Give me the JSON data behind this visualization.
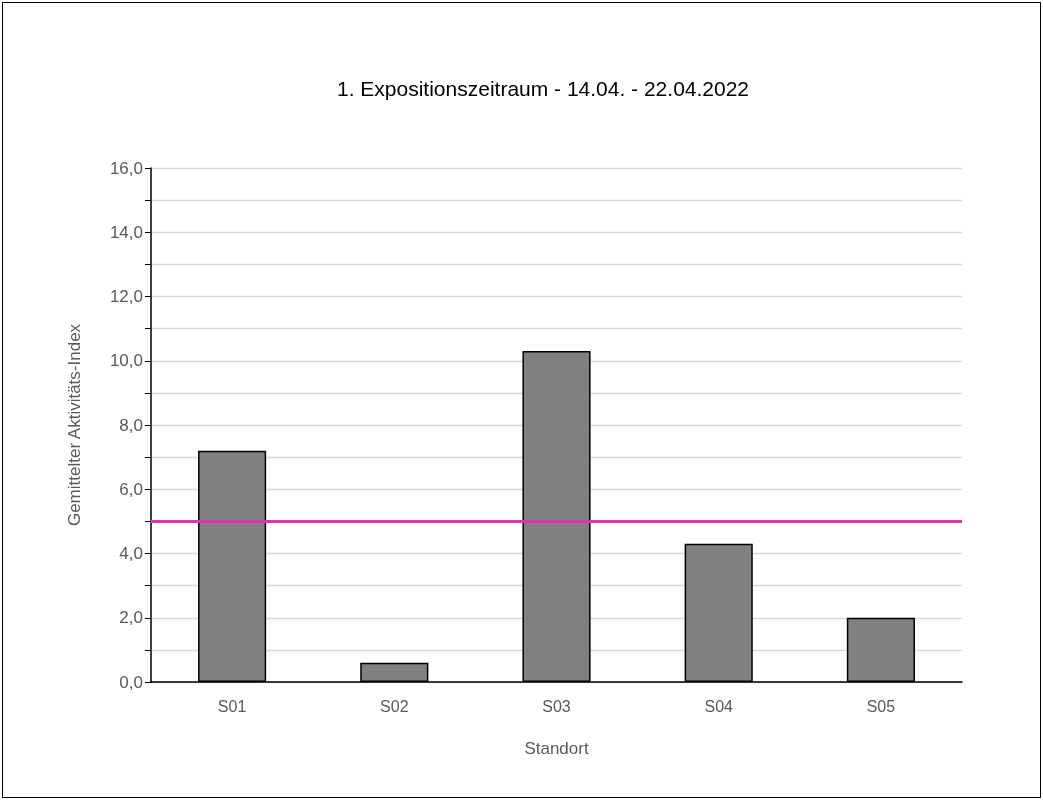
{
  "chart_data": {
    "type": "bar",
    "title": "1. Expositionszeitraum - 14.04. - 22.04.2022",
    "xlabel": "Standort",
    "ylabel": "Gemittelter Aktivitäts-Index",
    "categories": [
      "S01",
      "S02",
      "S03",
      "S04",
      "S05"
    ],
    "values": [
      7.2,
      0.6,
      10.3,
      4.3,
      2.0
    ],
    "color": "#808080",
    "ylim": [
      0,
      16
    ],
    "yticks": [
      {
        "value": 0,
        "label": "0,0"
      },
      {
        "value": 1,
        "label": null
      },
      {
        "value": 2,
        "label": "2,0"
      },
      {
        "value": 3,
        "label": null
      },
      {
        "value": 4,
        "label": "4,0"
      },
      {
        "value": 5,
        "label": null
      },
      {
        "value": 6,
        "label": "6,0"
      },
      {
        "value": 7,
        "label": null
      },
      {
        "value": 8,
        "label": "8,0"
      },
      {
        "value": 9,
        "label": null
      },
      {
        "value": 10,
        "label": "10,0"
      },
      {
        "value": 11,
        "label": null
      },
      {
        "value": 12,
        "label": "12,0"
      },
      {
        "value": 13,
        "label": null
      },
      {
        "value": 14,
        "label": "14,0"
      },
      {
        "value": 15,
        "label": null
      },
      {
        "value": 16,
        "label": "16,0"
      }
    ],
    "ref_lines": [
      {
        "axis": "y",
        "value": 5.0,
        "color": "#e033b4"
      }
    ],
    "grid": "y"
  }
}
